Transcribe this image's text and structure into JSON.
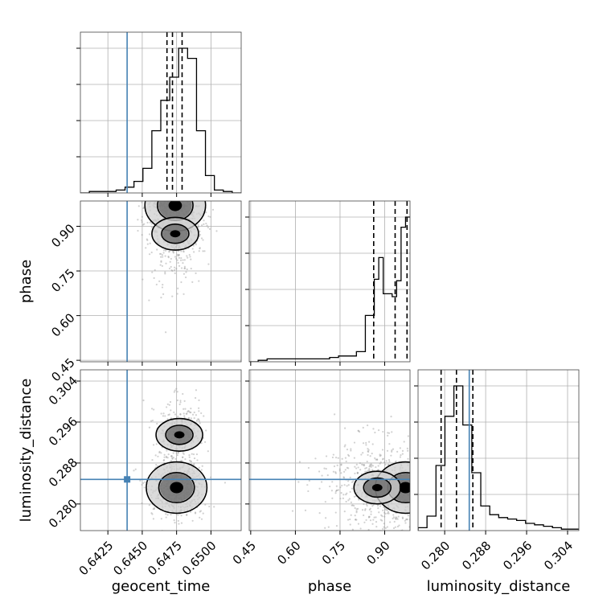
{
  "figure": {
    "type": "corner-plot",
    "colors": {
      "truth": "#4682b4",
      "hist": "#000000",
      "contour": "#000000",
      "grid": "#b0b0b0",
      "points": "#9a9a9a",
      "density_dark": "#000000",
      "density_mid": "#5a5a5a",
      "density_light": "#cfcfcf"
    }
  },
  "chart_data": {
    "type": "corner",
    "parameters": [
      "geocent_time",
      "phase",
      "luminosity_distance"
    ],
    "axis_titles": {
      "geocent_time": "geocent_time",
      "phase": "phase",
      "luminosity_distance": "luminosity_distance"
    },
    "ranges": {
      "geocent_time": [
        0.6405,
        0.6522
      ],
      "phase": [
        0.445,
        0.985
      ],
      "luminosity_distance": [
        0.2748,
        0.3062
      ]
    },
    "ticks": {
      "geocent_time": [
        {
          "value": 0.6425,
          "label": "0.6425"
        },
        {
          "value": 0.645,
          "label": "0.6450"
        },
        {
          "value": 0.6475,
          "label": "0.6475"
        },
        {
          "value": 0.65,
          "label": "0.6500"
        }
      ],
      "phase": [
        {
          "value": 0.45,
          "label": "0.45"
        },
        {
          "value": 0.6,
          "label": "0.60"
        },
        {
          "value": 0.75,
          "label": "0.75"
        },
        {
          "value": 0.9,
          "label": "0.90"
        }
      ],
      "luminosity_distance": [
        {
          "value": 0.28,
          "label": "0.280"
        },
        {
          "value": 0.288,
          "label": "0.288"
        },
        {
          "value": 0.296,
          "label": "0.296"
        },
        {
          "value": 0.304,
          "label": "0.304"
        }
      ]
    },
    "truths": {
      "geocent_time": 0.6439,
      "phase": null,
      "luminosity_distance": 0.2848
    },
    "quantiles": {
      "geocent_time": [
        0.6468,
        0.6472,
        0.6479
      ],
      "phase": [
        0.863,
        0.935,
        0.975
      ],
      "luminosity_distance": [
        0.2793,
        0.2823,
        0.2855
      ]
    },
    "histograms": {
      "geocent_time": {
        "edges": [
          0.6405,
          0.64115,
          0.6418,
          0.64245,
          0.6431,
          0.64375,
          0.6444,
          0.64505,
          0.6457,
          0.64635,
          0.647,
          0.64765,
          0.6483,
          0.64895,
          0.6496,
          0.65025,
          0.6509,
          0.65155,
          0.6522
        ],
        "counts": [
          0,
          1,
          1,
          1,
          2,
          4,
          8,
          17,
          43,
          64,
          80,
          100,
          93,
          43,
          12,
          2,
          1,
          0
        ]
      },
      "phase": {
        "edges": [
          0.445,
          0.475,
          0.505,
          0.535,
          0.565,
          0.595,
          0.625,
          0.655,
          0.685,
          0.715,
          0.745,
          0.775,
          0.805,
          0.835,
          0.865,
          0.88,
          0.895,
          0.91,
          0.925,
          0.94,
          0.955,
          0.97,
          0.985
        ],
        "counts": [
          0,
          1,
          2,
          2,
          2,
          2,
          2,
          2,
          2,
          3,
          4,
          4,
          7,
          32,
          57,
          72,
          47,
          47,
          45,
          56,
          93,
          100
        ]
      },
      "luminosity_distance": {
        "edges": [
          0.2748,
          0.27655,
          0.2783,
          0.28005,
          0.2818,
          0.28355,
          0.2853,
          0.28705,
          0.2888,
          0.29055,
          0.2923,
          0.29405,
          0.2958,
          0.29755,
          0.2993,
          0.30105,
          0.3028,
          0.30455,
          0.3062
        ],
        "counts": [
          2,
          10,
          45,
          79,
          100,
          73,
          40,
          17,
          11,
          9,
          8,
          7,
          5,
          4,
          3,
          2,
          1,
          1
        ]
      }
    },
    "scatter_pairs": [
      {
        "x": "geocent_time",
        "y": "phase",
        "density_peak": [
          0.6474,
          0.97
        ],
        "secondary_peak": [
          0.6474,
          0.875
        ],
        "spread": [
          0.0012,
          0.11
        ]
      },
      {
        "x": "geocent_time",
        "y": "luminosity_distance",
        "density_peak": [
          0.6475,
          0.2832
        ],
        "secondary_peak": [
          0.6477,
          0.2935
        ],
        "spread": [
          0.0011,
          0.004
        ]
      },
      {
        "x": "phase",
        "y": "luminosity_distance",
        "density_peak": [
          0.97,
          0.2832
        ],
        "secondary_peak": [
          0.875,
          0.2832
        ],
        "spread": [
          0.13,
          0.006
        ]
      }
    ]
  }
}
